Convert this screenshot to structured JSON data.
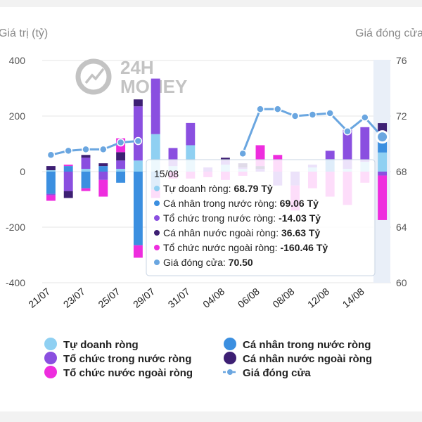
{
  "chart_data": {
    "type": "bar",
    "y_left_label": "Giá trị (tỷ)",
    "y_right_label": "Giá đóng cửa",
    "y_left_ticks": [
      "400",
      "200",
      "0",
      "-200",
      "-400"
    ],
    "y_right_ticks": [
      "76",
      "72",
      "68",
      "64",
      "60"
    ],
    "ylim_left": [
      -400,
      400
    ],
    "ylim_right": [
      60,
      76
    ],
    "x_tick_labels": [
      "21/07",
      "23/07",
      "25/07",
      "29/07",
      "31/07",
      "04/08",
      "06/08",
      "08/08",
      "12/08",
      "14/08"
    ],
    "dates": [
      "21/07",
      "22/07",
      "23/07",
      "24/07",
      "25/07",
      "28/07",
      "29/07",
      "30/07",
      "31/07",
      "01/08",
      "04/08",
      "05/08",
      "06/08",
      "07/08",
      "08/08",
      "11/08",
      "12/08",
      "13/08",
      "14/08",
      "15/08"
    ],
    "series": [
      {
        "name": "Tự doanh ròng",
        "color": "#8fd0f2",
        "values": [
          5,
          0,
          10,
          0,
          10,
          40,
          135,
          20,
          95,
          0,
          25,
          10,
          0,
          0,
          0,
          15,
          0,
          10,
          35,
          68.79
        ]
      },
      {
        "name": "Cá nhân trong nước ròng",
        "color": "#3b8fe0",
        "values": [
          -80,
          20,
          -60,
          20,
          -40,
          -265,
          -65,
          0,
          0,
          0,
          0,
          0,
          0,
          0,
          0,
          0,
          45,
          0,
          0,
          69.06
        ]
      },
      {
        "name": "Tổ chức trong nước ròng",
        "color": "#8a4fe0",
        "values": [
          -5,
          -70,
          40,
          -30,
          30,
          195,
          200,
          65,
          80,
          15,
          15,
          5,
          10,
          -50,
          -50,
          10,
          30,
          140,
          125,
          -14.03
        ]
      },
      {
        "name": "Cá nhân nước ngoài ròng",
        "color": "#3d1f73",
        "values": [
          15,
          -25,
          10,
          10,
          30,
          25,
          0,
          0,
          0,
          0,
          10,
          15,
          10,
          0,
          0,
          0,
          0,
          0,
          0,
          36.63
        ]
      },
      {
        "name": "Tổ chức nước ngoài ròng",
        "color": "#ee2dde",
        "values": [
          -20,
          5,
          -10,
          -60,
          50,
          -45,
          -30,
          -25,
          -25,
          -20,
          -30,
          -15,
          75,
          60,
          -90,
          -60,
          -90,
          -120,
          -40,
          -160.46
        ]
      }
    ],
    "close_price": {
      "name": "Giá đóng cửa",
      "color": "#6aa6e0",
      "values": [
        69.2,
        69.5,
        69.6,
        69.6,
        70.1,
        70.2,
        null,
        null,
        null,
        null,
        null,
        69.3,
        72.5,
        72.5,
        72.0,
        72.1,
        72.2,
        70.9,
        71.9,
        70.5
      ]
    },
    "legend_position": "bottom",
    "grid": true
  },
  "watermark": {
    "line1": "24H",
    "line2": "MONEY"
  },
  "tooltip": {
    "date": "15/08",
    "rows": [
      {
        "label": "Tự doanh ròng: ",
        "value": "68.79 Tỷ",
        "color": "#8fd0f2"
      },
      {
        "label": "Cá nhân trong nước ròng: ",
        "value": "69.06 Tỷ",
        "color": "#3b8fe0"
      },
      {
        "label": "Tổ chức trong nước ròng: ",
        "value": "-14.03 Tỷ",
        "color": "#8a4fe0"
      },
      {
        "label": "Cá nhân nước ngoài ròng: ",
        "value": "36.63 Tỷ",
        "color": "#3d1f73"
      },
      {
        "label": "Tổ chức nước ngoài ròng: ",
        "value": "-160.46 Tỷ",
        "color": "#ee2dde"
      },
      {
        "label": "Giá đóng cửa: ",
        "value": "70.50",
        "color": "#6aa6e0"
      }
    ]
  },
  "legend": [
    {
      "label": "Tự doanh ròng",
      "color": "#8fd0f2",
      "kind": "swatch"
    },
    {
      "label": "Cá nhân trong nước ròng",
      "color": "#3b8fe0",
      "kind": "swatch"
    },
    {
      "label": "Tổ chức trong nước ròng",
      "color": "#8a4fe0",
      "kind": "swatch"
    },
    {
      "label": "Cá nhân nước ngoài ròng",
      "color": "#3d1f73",
      "kind": "swatch"
    },
    {
      "label": "Tổ chức nước ngoài ròng",
      "color": "#ee2dde",
      "kind": "swatch"
    },
    {
      "label": "Giá đóng cửa",
      "color": "#6aa6e0",
      "kind": "line"
    }
  ]
}
